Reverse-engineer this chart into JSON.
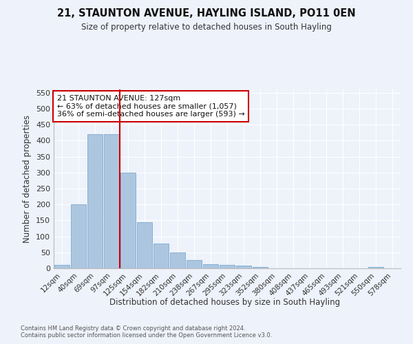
{
  "title": "21, STAUNTON AVENUE, HAYLING ISLAND, PO11 0EN",
  "subtitle": "Size of property relative to detached houses in South Hayling",
  "xlabel": "Distribution of detached houses by size in South Hayling",
  "ylabel": "Number of detached properties",
  "bin_labels": [
    "12sqm",
    "40sqm",
    "69sqm",
    "97sqm",
    "125sqm",
    "154sqm",
    "182sqm",
    "210sqm",
    "238sqm",
    "267sqm",
    "295sqm",
    "323sqm",
    "352sqm",
    "380sqm",
    "408sqm",
    "437sqm",
    "465sqm",
    "493sqm",
    "521sqm",
    "550sqm",
    "578sqm"
  ],
  "bar_heights": [
    10,
    200,
    420,
    420,
    300,
    145,
    78,
    50,
    25,
    13,
    10,
    8,
    5,
    0,
    0,
    0,
    0,
    0,
    0,
    4,
    0
  ],
  "bar_color": "#adc6e0",
  "bar_edge_color": "#7aaad0",
  "marker_line_color": "#cc0000",
  "annotation_text": "21 STAUNTON AVENUE: 127sqm\n← 63% of detached houses are smaller (1,057)\n36% of semi-detached houses are larger (593) →",
  "annotation_box_color": "#ffffff",
  "annotation_box_edge": "#cc0000",
  "ylim": [
    0,
    560
  ],
  "yticks": [
    0,
    50,
    100,
    150,
    200,
    250,
    300,
    350,
    400,
    450,
    500,
    550
  ],
  "footer": "Contains HM Land Registry data © Crown copyright and database right 2024.\nContains public sector information licensed under the Open Government Licence v3.0.",
  "bg_color": "#eef2fa",
  "grid_color": "#ffffff",
  "marker_bin_index": 4
}
